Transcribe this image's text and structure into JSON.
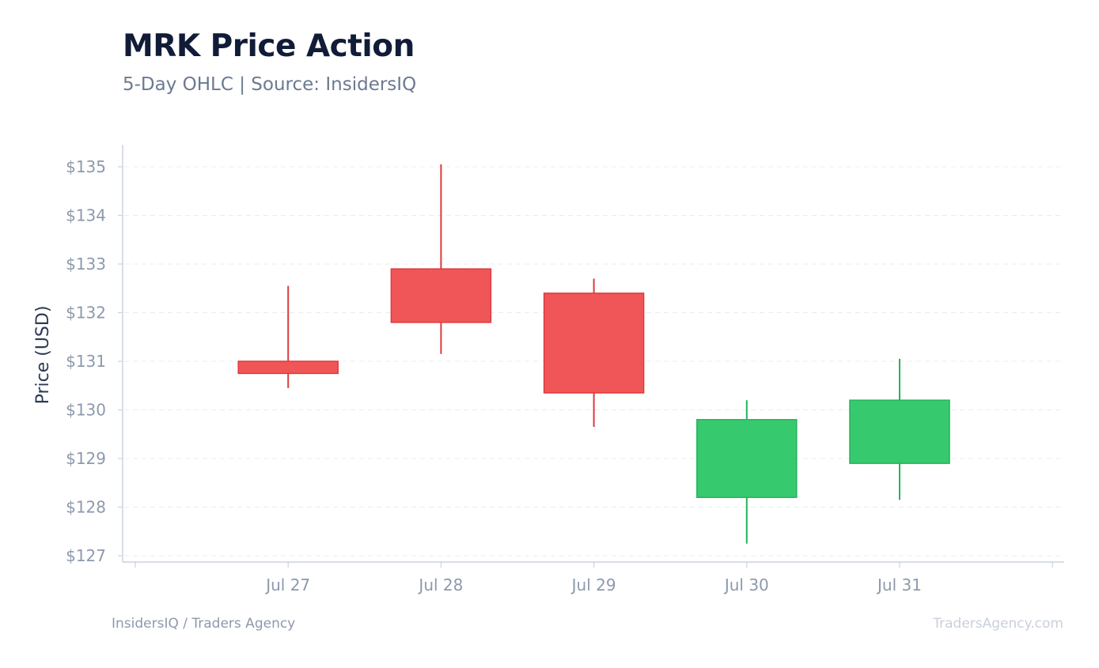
{
  "header": {
    "title": "MRK Price Action",
    "subtitle": "5-Day OHLC | Source: InsidersIQ"
  },
  "footer": {
    "left": "InsidersIQ / Traders Agency",
    "right": "TradersAgency.com"
  },
  "colors": {
    "up": "#37c96e",
    "up_stroke": "#22b55a",
    "down": "#f05657",
    "down_stroke": "#dc3b3c",
    "axis_text": "#8d99ac",
    "ylabel": "#2b3a55",
    "grid": "#e8ecf1",
    "axis": "#ccd3dd"
  },
  "chart_data": {
    "type": "candlestick",
    "ylabel": "Price (USD)",
    "ylim": [
      127,
      135
    ],
    "yticks": [
      127,
      128,
      129,
      130,
      131,
      132,
      133,
      134,
      135
    ],
    "ytick_labels": [
      "$127",
      "$128",
      "$129",
      "$130",
      "$131",
      "$132",
      "$133",
      "$134",
      "$135"
    ],
    "categories": [
      "Jul 27",
      "Jul 28",
      "Jul 29",
      "Jul 30",
      "Jul 31"
    ],
    "open": [
      131.0,
      132.9,
      132.4,
      128.2,
      128.9
    ],
    "high": [
      132.55,
      135.05,
      132.7,
      130.2,
      131.05
    ],
    "low": [
      130.45,
      131.15,
      129.65,
      127.25,
      128.15
    ],
    "close": [
      130.75,
      131.8,
      130.35,
      129.8,
      130.2
    ],
    "grid": true,
    "legend": "none"
  }
}
